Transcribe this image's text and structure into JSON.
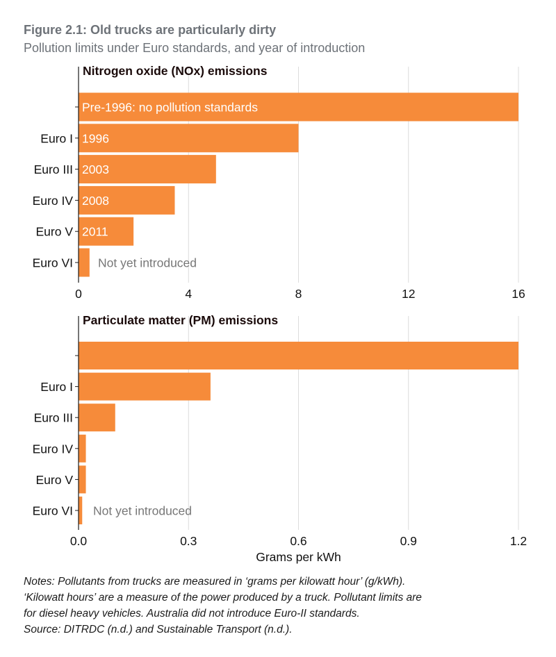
{
  "title": "Figure 2.1: Old trucks are particularly dirty",
  "subtitle": "Pollution limits under Euro standards, and year of introduction",
  "colors": {
    "bar": "#f68b3a",
    "grid": "#dcdcdc",
    "axis": "#1a1a1a",
    "annotation_gray": "#777777",
    "title_gray": "#6d7278"
  },
  "chart_data": [
    {
      "type": "bar",
      "orientation": "horizontal",
      "title": "Nitrogen oxide (NOx) emissions",
      "categories": [
        "",
        "Euro I",
        "Euro III",
        "Euro IV",
        "Euro V",
        "Euro VI"
      ],
      "values": [
        16,
        8,
        5,
        3.5,
        2,
        0.4
      ],
      "bar_labels": [
        "Pre-1996: no pollution standards",
        "1996",
        "2003",
        "2008",
        "2011",
        ""
      ],
      "annotations": [
        {
          "category": "Euro VI",
          "text": "Not yet introduced"
        }
      ],
      "xlim": [
        0,
        16
      ],
      "xticks": [
        0,
        4,
        8,
        12,
        16
      ],
      "xtick_labels": [
        "0",
        "4",
        "8",
        "12",
        "16"
      ],
      "xlabel": "",
      "ylabel": "",
      "grid": "vertical"
    },
    {
      "type": "bar",
      "orientation": "horizontal",
      "title": "Particulate matter (PM) emissions",
      "categories": [
        "",
        "Euro I",
        "Euro III",
        "Euro IV",
        "Euro V",
        "Euro VI"
      ],
      "values": [
        1.2,
        0.36,
        0.1,
        0.02,
        0.02,
        0.01
      ],
      "bar_labels": [
        "",
        "",
        "",
        "",
        "",
        ""
      ],
      "annotations": [
        {
          "category": "Euro VI",
          "text": "Not yet introduced"
        }
      ],
      "xlim": [
        0,
        1.2
      ],
      "xticks": [
        0,
        0.3,
        0.6,
        0.9,
        1.2
      ],
      "xtick_labels": [
        "0.0",
        "0.3",
        "0.6",
        "0.9",
        "1.2"
      ],
      "xlabel": "Grams per kWh",
      "ylabel": "",
      "grid": "vertical"
    }
  ],
  "notes": [
    "Notes: Pollutants from trucks are measured in ‘grams per kilowatt hour’ (g/kWh).",
    "‘Kilowatt hours’ are a measure of the power produced by a truck. Pollutant limits are",
    "for diesel heavy vehicles. Australia did not introduce Euro-II standards.",
    "Source: DITRDC (n.d.) and Sustainable Transport (n.d.)."
  ]
}
